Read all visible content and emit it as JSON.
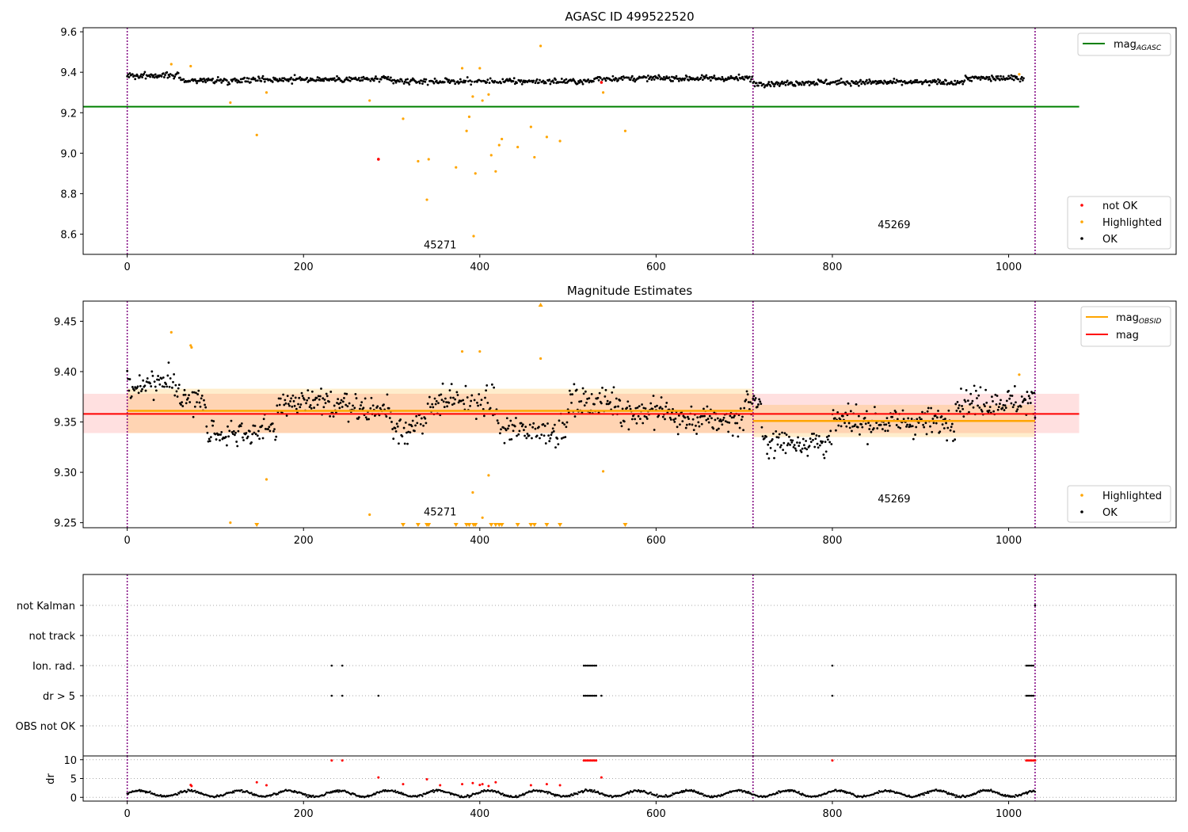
{
  "chart_data": [
    {
      "type": "scatter",
      "title": "AGASC ID 499522520",
      "xlim": [
        -50,
        1190
      ],
      "ylim": [
        8.5,
        9.62
      ],
      "x_ticks": [
        0,
        200,
        400,
        600,
        800,
        1000
      ],
      "y_ticks": [
        8.6,
        8.8,
        9.0,
        9.2,
        9.4,
        9.6
      ],
      "obs_boundaries": [
        0,
        710,
        1030
      ],
      "obsid_labels": [
        {
          "text": "45271",
          "x": 355,
          "y": 8.53
        },
        {
          "text": "45269",
          "x": 870,
          "y": 8.63
        }
      ],
      "mag_agasc": {
        "value": 9.23,
        "x_range": [
          -50,
          1080
        ],
        "label": "mag",
        "label_sub": "AGASC",
        "color": "#008000"
      },
      "legend_lines": [
        {
          "label": "mag",
          "sub": "AGASC",
          "color": "#008000"
        }
      ],
      "legend_points": [
        {
          "label": "not OK",
          "color": "#ff0000"
        },
        {
          "label": "Highlighted",
          "color": "#ffa500"
        },
        {
          "label": "OK",
          "color": "#000000"
        }
      ],
      "not_ok": [
        [
          285,
          8.97
        ],
        [
          538,
          9.35
        ]
      ],
      "highlighted": [
        [
          50,
          9.44
        ],
        [
          72,
          9.43
        ],
        [
          117,
          9.25
        ],
        [
          147,
          9.09
        ],
        [
          158,
          9.3
        ],
        [
          275,
          9.26
        ],
        [
          313,
          9.17
        ],
        [
          330,
          8.96
        ],
        [
          340,
          8.77
        ],
        [
          342,
          8.97
        ],
        [
          373,
          8.93
        ],
        [
          380,
          9.42
        ],
        [
          385,
          9.11
        ],
        [
          388,
          9.18
        ],
        [
          392,
          9.28
        ],
        [
          393,
          8.59
        ],
        [
          395,
          8.9
        ],
        [
          400,
          9.42
        ],
        [
          403,
          9.26
        ],
        [
          410,
          9.29
        ],
        [
          413,
          8.99
        ],
        [
          418,
          8.91
        ],
        [
          422,
          9.04
        ],
        [
          425,
          9.07
        ],
        [
          443,
          9.03
        ],
        [
          458,
          9.13
        ],
        [
          462,
          8.98
        ],
        [
          469,
          9.53
        ],
        [
          476,
          9.08
        ],
        [
          491,
          9.06
        ],
        [
          540,
          9.3
        ],
        [
          565,
          9.11
        ],
        [
          1012,
          9.39
        ]
      ]
    },
    {
      "type": "scatter",
      "title": "Magnitude Estimates",
      "xlim": [
        -50,
        1190
      ],
      "ylim": [
        9.245,
        9.47
      ],
      "x_ticks": [
        0,
        200,
        400,
        600,
        800,
        1000
      ],
      "y_ticks": [
        9.25,
        9.3,
        9.35,
        9.4,
        9.45
      ],
      "obs_boundaries": [
        0,
        710,
        1030
      ],
      "obsid_labels": [
        {
          "text": "45271",
          "x": 355,
          "y": 9.257
        },
        {
          "text": "45269",
          "x": 870,
          "y": 9.27
        }
      ],
      "mag": {
        "value": 9.358,
        "band": [
          9.339,
          9.378
        ],
        "x_range": [
          -50,
          1080
        ],
        "color": "#ff0000"
      },
      "mag_obsid": [
        {
          "value": 9.361,
          "band": [
            9.339,
            9.383
          ],
          "x_range": [
            0,
            710
          ]
        },
        {
          "value": 9.351,
          "band": [
            9.335,
            9.367
          ],
          "x_range": [
            710,
            1030
          ]
        }
      ],
      "legend_lines": [
        {
          "label": "mag",
          "sub": "OBSID",
          "color": "#ffa500"
        },
        {
          "label": "mag",
          "sub": "",
          "color": "#ff0000"
        }
      ],
      "legend_points": [
        {
          "label": "Highlighted",
          "color": "#ffa500"
        },
        {
          "label": "OK",
          "color": "#000000"
        }
      ],
      "highlighted": [
        [
          50,
          9.439
        ],
        [
          72,
          9.426
        ],
        [
          73,
          9.424
        ],
        [
          117,
          9.25
        ],
        [
          158,
          9.293
        ],
        [
          275,
          9.258
        ],
        [
          380,
          9.42
        ],
        [
          392,
          9.28
        ],
        [
          400,
          9.42
        ],
        [
          403,
          9.255
        ],
        [
          410,
          9.297
        ],
        [
          469,
          9.413
        ],
        [
          540,
          9.301
        ],
        [
          1012,
          9.397
        ]
      ],
      "below_range_x": [
        147,
        313,
        330,
        340,
        342,
        373,
        385,
        388,
        393,
        395,
        413,
        418,
        422,
        425,
        443,
        458,
        462,
        476,
        491,
        565
      ],
      "above_range_x": [
        469
      ]
    },
    {
      "type": "scatter",
      "title": "",
      "xlim": [
        -50,
        1190
      ],
      "categories": [
        "not Kalman",
        "not track",
        "Ion. rad.",
        "dr > 5",
        "OBS not OK"
      ],
      "obs_boundaries": [
        0,
        710,
        1030
      ],
      "flags": {
        "not Kalman": [
          1030
        ],
        "not track": [],
        "Ion. rad.": [
          232,
          244,
          518,
          520,
          522,
          524,
          526,
          528,
          530,
          532,
          800,
          1020,
          1022,
          1024,
          1026,
          1028
        ],
        "dr > 5": [
          232,
          244,
          285,
          518,
          520,
          522,
          524,
          526,
          528,
          530,
          532,
          538,
          800,
          1020,
          1022,
          1024,
          1026,
          1028
        ],
        "OBS not OK": []
      }
    },
    {
      "type": "scatter",
      "title": "",
      "ylabel": "dr",
      "xlim": [
        -50,
        1190
      ],
      "ylim": [
        -1,
        11
      ],
      "x_ticks": [
        0,
        200,
        400,
        600,
        800,
        1000
      ],
      "y_ticks": [
        0,
        5,
        10
      ],
      "obs_boundaries": [
        0,
        710,
        1030
      ],
      "red_points": [
        [
          72,
          3.3
        ],
        [
          73,
          3.0
        ],
        [
          147,
          4.0
        ],
        [
          158,
          3.2
        ],
        [
          232,
          9.8
        ],
        [
          244,
          9.8
        ],
        [
          285,
          5.3
        ],
        [
          313,
          3.5
        ],
        [
          340,
          4.8
        ],
        [
          355,
          3.2
        ],
        [
          380,
          3.5
        ],
        [
          392,
          3.8
        ],
        [
          400,
          3.3
        ],
        [
          403,
          3.5
        ],
        [
          410,
          3.0
        ],
        [
          418,
          4.0
        ],
        [
          458,
          3.2
        ],
        [
          476,
          3.5
        ],
        [
          491,
          3.2
        ],
        [
          518,
          9.8
        ],
        [
          520,
          9.8
        ],
        [
          522,
          9.8
        ],
        [
          524,
          9.8
        ],
        [
          526,
          9.8
        ],
        [
          528,
          9.8
        ],
        [
          530,
          9.8
        ],
        [
          532,
          9.8
        ],
        [
          538,
          5.3
        ],
        [
          800,
          9.8
        ],
        [
          1020,
          9.8
        ],
        [
          1022,
          9.8
        ],
        [
          1024,
          9.8
        ],
        [
          1026,
          9.8
        ],
        [
          1028,
          9.8
        ],
        [
          1030,
          9.8
        ]
      ]
    }
  ]
}
